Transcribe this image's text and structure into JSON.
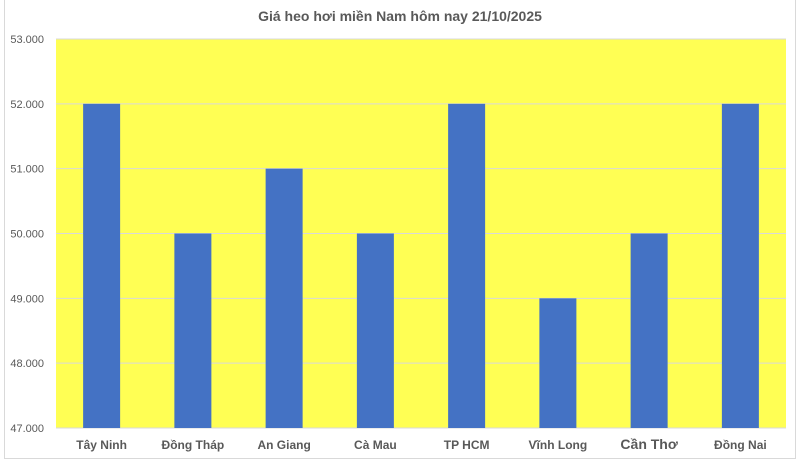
{
  "chart_data": {
    "type": "bar",
    "title": "Giá heo hơi miền Nam hôm nay 21/10/2025",
    "categories": [
      "Tây Ninh",
      "Đồng Tháp",
      "An Giang",
      "Cà Mau",
      "TP HCM",
      "Vĩnh Long",
      "Cần Thơ",
      "Đồng Nai"
    ],
    "values": [
      52000,
      50000,
      51000,
      50000,
      52000,
      49000,
      50000,
      52000
    ],
    "ylim": [
      47000,
      53000
    ],
    "yticks": [
      47000,
      48000,
      49000,
      50000,
      51000,
      52000,
      53000
    ],
    "ytick_labels": [
      "47.000",
      "48.000",
      "49.000",
      "50.000",
      "51.000",
      "52.000",
      "53.000"
    ],
    "grid": true,
    "legend": "none",
    "colors": {
      "bar": "#4472c4",
      "plot_background": "#ffff54",
      "gridline": "#d9d9d9"
    }
  }
}
